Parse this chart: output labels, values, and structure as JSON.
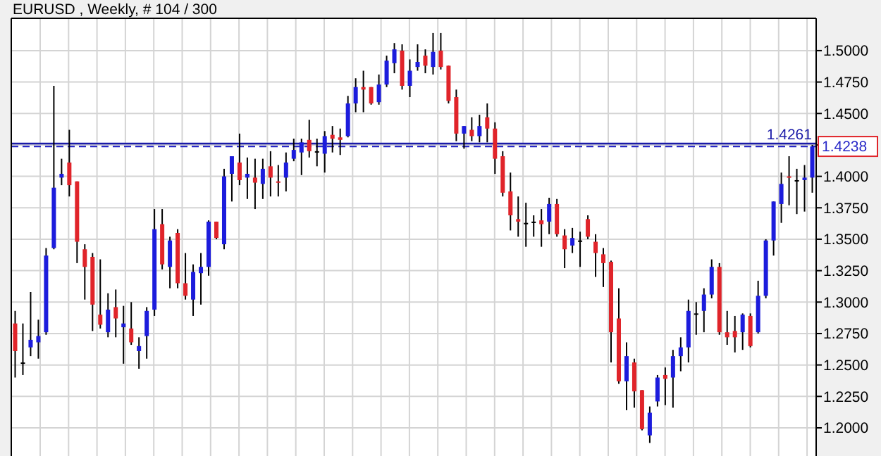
{
  "chart_data": {
    "type": "candlestick",
    "title": "EURUSD , Weekly, # 104 / 300",
    "categories": [
      null,
      null,
      null,
      null,
      null,
      null,
      null,
      null,
      null,
      null,
      null,
      null,
      null,
      null,
      null,
      null,
      null,
      null,
      null,
      null,
      null,
      null,
      null,
      null,
      null,
      null,
      null,
      null,
      null,
      null,
      null,
      null,
      null,
      null,
      null,
      null,
      null,
      null,
      null,
      null,
      null,
      null,
      null,
      null,
      null,
      null,
      null,
      null,
      null,
      null,
      null,
      null,
      null,
      null,
      null,
      null,
      null,
      null,
      null,
      null,
      null,
      null,
      null,
      null,
      null,
      null,
      null,
      null,
      null,
      null,
      null,
      null,
      null,
      null,
      null,
      null,
      null,
      null,
      null,
      null,
      null,
      null,
      null,
      null,
      null,
      null,
      null,
      null,
      null,
      null,
      null,
      null,
      null,
      null,
      null,
      null,
      null,
      null,
      null,
      null,
      null,
      null,
      null,
      null
    ],
    "ohlc": [
      [
        1.283,
        1.293,
        1.24,
        1.261
      ],
      [
        1.252,
        1.283,
        1.242,
        1.252
      ],
      [
        1.264,
        1.308,
        1.257,
        1.27
      ],
      [
        1.268,
        1.286,
        1.255,
        1.273
      ],
      [
        1.276,
        1.343,
        1.274,
        1.337
      ],
      [
        1.343,
        1.472,
        1.342,
        1.391
      ],
      [
        1.399,
        1.414,
        1.393,
        1.402
      ],
      [
        1.411,
        1.437,
        1.384,
        1.393
      ],
      [
        1.396,
        1.396,
        1.331,
        1.348
      ],
      [
        1.342,
        1.346,
        1.302,
        1.328
      ],
      [
        1.336,
        1.339,
        1.277,
        1.298
      ],
      [
        1.29,
        1.334,
        1.279,
        1.282
      ],
      [
        1.276,
        1.307,
        1.272,
        1.294
      ],
      [
        1.296,
        1.31,
        1.272,
        1.287
      ],
      [
        1.28,
        1.297,
        1.251,
        1.283
      ],
      [
        1.279,
        1.3,
        1.266,
        1.268
      ],
      [
        1.261,
        1.272,
        1.247,
        1.265
      ],
      [
        1.273,
        1.296,
        1.255,
        1.293
      ],
      [
        1.294,
        1.374,
        1.289,
        1.358
      ],
      [
        1.362,
        1.374,
        1.326,
        1.33
      ],
      [
        1.328,
        1.352,
        1.311,
        1.349
      ],
      [
        1.355,
        1.358,
        1.311,
        1.315
      ],
      [
        1.315,
        1.339,
        1.302,
        1.305
      ],
      [
        1.302,
        1.33,
        1.289,
        1.324
      ],
      [
        1.323,
        1.339,
        1.298,
        1.328
      ],
      [
        1.328,
        1.365,
        1.321,
        1.364
      ],
      [
        1.364,
        1.364,
        1.35,
        1.351
      ],
      [
        1.346,
        1.406,
        1.342,
        1.4
      ],
      [
        1.402,
        1.416,
        1.38,
        1.416
      ],
      [
        1.411,
        1.434,
        1.393,
        1.397
      ],
      [
        1.399,
        1.415,
        1.382,
        1.402
      ],
      [
        1.399,
        1.414,
        1.374,
        1.395
      ],
      [
        1.394,
        1.414,
        1.382,
        1.406
      ],
      [
        1.408,
        1.42,
        1.384,
        1.399
      ],
      [
        1.396,
        1.409,
        1.384,
        1.395
      ],
      [
        1.399,
        1.419,
        1.388,
        1.411
      ],
      [
        1.414,
        1.43,
        1.412,
        1.421
      ],
      [
        1.419,
        1.43,
        1.401,
        1.427
      ],
      [
        1.429,
        1.445,
        1.415,
        1.42
      ],
      [
        1.42,
        1.43,
        1.408,
        1.42
      ],
      [
        1.418,
        1.436,
        1.403,
        1.432
      ],
      [
        1.433,
        1.44,
        1.419,
        1.43
      ],
      [
        1.431,
        1.438,
        1.417,
        1.429
      ],
      [
        1.432,
        1.464,
        1.431,
        1.458
      ],
      [
        1.458,
        1.478,
        1.451,
        1.471
      ],
      [
        1.471,
        1.484,
        1.451,
        1.469
      ],
      [
        1.471,
        1.471,
        1.457,
        1.458
      ],
      [
        1.459,
        1.481,
        1.457,
        1.473
      ],
      [
        1.473,
        1.496,
        1.471,
        1.492
      ],
      [
        1.49,
        1.506,
        1.482,
        1.501
      ],
      [
        1.5,
        1.505,
        1.469,
        1.472
      ],
      [
        1.472,
        1.493,
        1.463,
        1.484
      ],
      [
        1.487,
        1.505,
        1.484,
        1.491
      ],
      [
        1.496,
        1.501,
        1.482,
        1.488
      ],
      [
        1.487,
        1.514,
        1.481,
        1.499
      ],
      [
        1.5,
        1.514,
        1.485,
        1.487
      ],
      [
        1.488,
        1.488,
        1.458,
        1.46
      ],
      [
        1.463,
        1.469,
        1.428,
        1.434
      ],
      [
        1.434,
        1.44,
        1.422,
        1.44
      ],
      [
        1.437,
        1.447,
        1.428,
        1.432
      ],
      [
        1.432,
        1.449,
        1.427,
        1.44
      ],
      [
        1.447,
        1.458,
        1.427,
        1.438
      ],
      [
        1.438,
        1.443,
        1.402,
        1.414
      ],
      [
        1.416,
        1.42,
        1.384,
        1.387
      ],
      [
        1.388,
        1.403,
        1.357,
        1.369
      ],
      [
        1.366,
        1.384,
        1.352,
        1.364
      ],
      [
        1.363,
        1.379,
        1.344,
        1.363
      ],
      [
        1.364,
        1.369,
        1.352,
        1.364
      ],
      [
        1.365,
        1.374,
        1.344,
        1.362
      ],
      [
        1.364,
        1.383,
        1.354,
        1.378
      ],
      [
        1.378,
        1.382,
        1.352,
        1.354
      ],
      [
        1.353,
        1.358,
        1.327,
        1.342
      ],
      [
        1.345,
        1.359,
        1.339,
        1.351
      ],
      [
        1.349,
        1.356,
        1.328,
        1.349
      ],
      [
        1.366,
        1.369,
        1.35,
        1.352
      ],
      [
        1.348,
        1.354,
        1.32,
        1.339
      ],
      [
        1.338,
        1.343,
        1.312,
        1.331
      ],
      [
        1.332,
        1.333,
        1.252,
        1.276
      ],
      [
        1.287,
        1.311,
        1.235,
        1.237
      ],
      [
        1.237,
        1.268,
        1.214,
        1.257
      ],
      [
        1.252,
        1.255,
        1.216,
        1.229
      ],
      [
        1.23,
        1.23,
        1.198,
        1.199
      ],
      [
        1.194,
        1.217,
        1.188,
        1.212
      ],
      [
        1.221,
        1.242,
        1.217,
        1.24
      ],
      [
        1.242,
        1.248,
        1.218,
        1.239
      ],
      [
        1.24,
        1.262,
        1.216,
        1.257
      ],
      [
        1.257,
        1.272,
        1.245,
        1.264
      ],
      [
        1.264,
        1.302,
        1.252,
        1.293
      ],
      [
        1.291,
        1.3,
        1.274,
        1.291
      ],
      [
        1.293,
        1.311,
        1.276,
        1.306
      ],
      [
        1.306,
        1.334,
        1.303,
        1.328
      ],
      [
        1.328,
        1.331,
        1.274,
        1.276
      ],
      [
        1.276,
        1.293,
        1.266,
        1.272
      ],
      [
        1.277,
        1.289,
        1.26,
        1.272
      ],
      [
        1.276,
        1.291,
        1.262,
        1.29
      ],
      [
        1.289,
        1.291,
        1.264,
        1.265
      ],
      [
        1.276,
        1.317,
        1.275,
        1.305
      ],
      [
        1.305,
        1.35,
        1.303,
        1.349
      ],
      [
        1.349,
        1.38,
        1.337,
        1.38
      ],
      [
        1.378,
        1.403,
        1.363,
        1.394
      ],
      [
        1.4,
        1.416,
        1.377,
        1.399
      ],
      [
        1.397,
        1.406,
        1.37,
        1.397
      ],
      [
        1.397,
        1.409,
        1.372,
        1.399
      ],
      [
        1.399,
        1.425,
        1.387,
        1.4238
      ]
    ],
    "colors": [
      "#e0242a",
      "#000000",
      "#1c1cdc",
      "#1c1cdc",
      "#1c1cdc",
      "#1c1cdc",
      "#1c1cdc",
      "#e0242a",
      "#e0242a",
      "#e0242a",
      "#e0242a",
      "#e0242a",
      "#1c1cdc",
      "#e0242a",
      "#1c1cdc",
      "#e0242a",
      "#1c1cdc",
      "#1c1cdc",
      "#1c1cdc",
      "#e0242a",
      "#1c1cdc",
      "#e0242a",
      "#e0242a",
      "#1c1cdc",
      "#1c1cdc",
      "#1c1cdc",
      "#e0242a",
      "#1c1cdc",
      "#1c1cdc",
      "#e0242a",
      "#1c1cdc",
      "#e0242a",
      "#1c1cdc",
      "#e0242a",
      "#e0242a",
      "#1c1cdc",
      "#1c1cdc",
      "#1c1cdc",
      "#e0242a",
      "#000000",
      "#1c1cdc",
      "#e0242a",
      "#e0242a",
      "#1c1cdc",
      "#1c1cdc",
      "#e0242a",
      "#e0242a",
      "#1c1cdc",
      "#1c1cdc",
      "#1c1cdc",
      "#e0242a",
      "#1c1cdc",
      "#1c1cdc",
      "#e0242a",
      "#1c1cdc",
      "#e0242a",
      "#e0242a",
      "#e0242a",
      "#1c1cdc",
      "#e0242a",
      "#1c1cdc",
      "#e0242a",
      "#e0242a",
      "#e0242a",
      "#e0242a",
      "#e0242a",
      "#000000",
      "#000000",
      "#e0242a",
      "#1c1cdc",
      "#e0242a",
      "#e0242a",
      "#1c1cdc",
      "#000000",
      "#e0242a",
      "#e0242a",
      "#e0242a",
      "#e0242a",
      "#e0242a",
      "#1c1cdc",
      "#e0242a",
      "#e0242a",
      "#1c1cdc",
      "#1c1cdc",
      "#e0242a",
      "#1c1cdc",
      "#1c1cdc",
      "#1c1cdc",
      "#000000",
      "#1c1cdc",
      "#1c1cdc",
      "#e0242a",
      "#e0242a",
      "#e0242a",
      "#1c1cdc",
      "#e0242a",
      "#1c1cdc",
      "#1c1cdc",
      "#1c1cdc",
      "#1c1cdc",
      "#e0242a",
      "#000000",
      "#1c1cdc",
      "#1c1cdc"
    ],
    "ylim": [
      1.1776,
      1.5257
    ],
    "yticks": [
      {
        "value": 1.2,
        "label": "1.2000"
      },
      {
        "value": 1.225,
        "label": "1.2250"
      },
      {
        "value": 1.25,
        "label": "1.2500"
      },
      {
        "value": 1.275,
        "label": "1.2750"
      },
      {
        "value": 1.3,
        "label": "1.3000"
      },
      {
        "value": 1.325,
        "label": "1.3250"
      },
      {
        "value": 1.35,
        "label": "1.3500"
      },
      {
        "value": 1.375,
        "label": "1.3750"
      },
      {
        "value": 1.4,
        "label": "1.4000"
      },
      {
        "value": 1.425,
        "label": null
      },
      {
        "value": 1.45,
        "label": "1.4500"
      },
      {
        "value": 1.475,
        "label": "1.4750"
      },
      {
        "value": 1.5,
        "label": "1.5000"
      }
    ],
    "ref_lines": [
      {
        "axis": "y",
        "value": 1.4261,
        "label": "1.4261",
        "color": "#1a1aa8",
        "line_style": "solid"
      },
      {
        "axis": "y",
        "value": 1.4238,
        "label": "1.4238",
        "color": "#2a2ac8",
        "line_style": "dashed"
      }
    ],
    "tick_labels": "y",
    "grid": true
  }
}
